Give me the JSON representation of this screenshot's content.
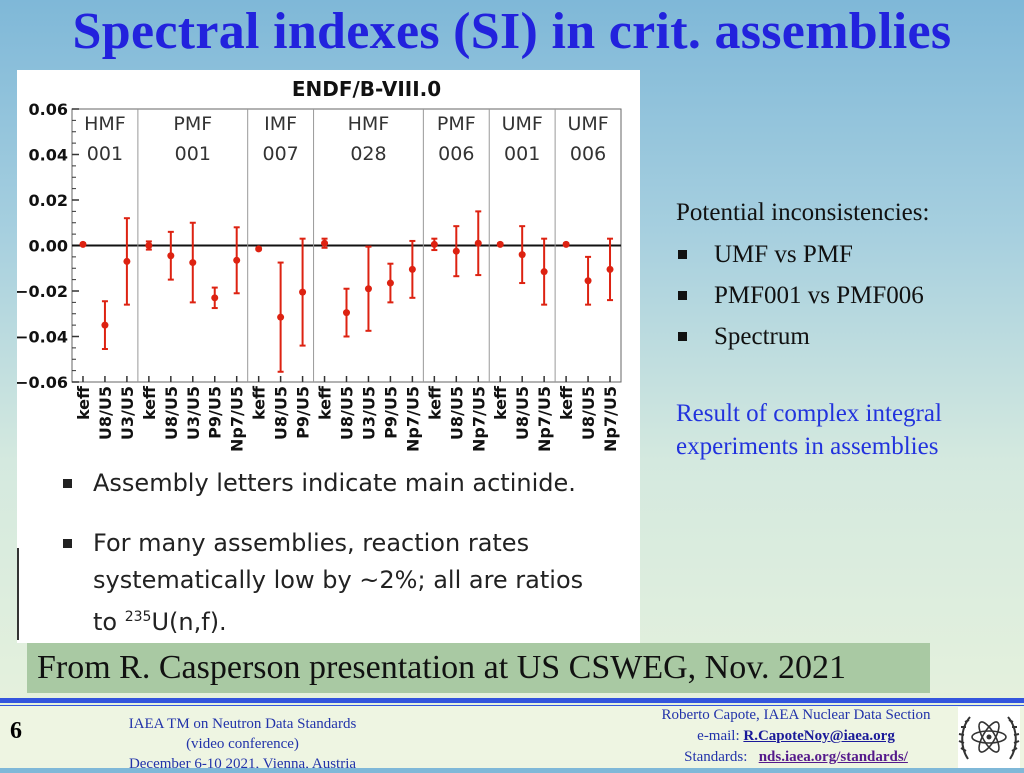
{
  "slide": {
    "title": "Spectral indexes (SI) in crit. assemblies",
    "page_number": "6"
  },
  "chart_data": {
    "type": "scatter",
    "subtype": "errorbar",
    "title": "ENDF/B-VIII.0",
    "ylim": [
      -0.06,
      0.06
    ],
    "yticks": [
      0.06,
      0.04,
      0.02,
      0.0,
      -0.02,
      -0.04,
      -0.06
    ],
    "ytick_labels": [
      "0.06",
      "0.04",
      "0.02",
      "0.00",
      "−0.02",
      "−0.04",
      "−0.06"
    ],
    "marker_color": "#dd2211",
    "groups": [
      {
        "name_line1": "HMF",
        "name_line2": "001",
        "points": [
          {
            "label": "keff",
            "value": 0.0005,
            "err": 0.0005
          },
          {
            "label": "U8/U5",
            "value": -0.035,
            "err": 0.0105
          },
          {
            "label": "U3/U5",
            "value": -0.007,
            "err": 0.019
          }
        ]
      },
      {
        "name_line1": "PMF",
        "name_line2": "001",
        "points": [
          {
            "label": "keff",
            "value": 0.0,
            "err": 0.0018
          },
          {
            "label": "U8/U5",
            "value": -0.0045,
            "err": 0.0105
          },
          {
            "label": "U3/U5",
            "value": -0.0075,
            "err": 0.0175
          },
          {
            "label": "P9/U5",
            "value": -0.023,
            "err": 0.0045
          },
          {
            "label": "Np7/U5",
            "value": -0.0065,
            "err": 0.0145
          }
        ]
      },
      {
        "name_line1": "IMF",
        "name_line2": "007",
        "points": [
          {
            "label": "keff",
            "value": -0.0015,
            "err": 0.0005
          },
          {
            "label": "U8/U5",
            "value": -0.0315,
            "err": 0.024
          },
          {
            "label": "P9/U5",
            "value": -0.0205,
            "err": 0.0235
          }
        ]
      },
      {
        "name_line1": "HMF",
        "name_line2": "028",
        "points": [
          {
            "label": "keff",
            "value": 0.001,
            "err": 0.002
          },
          {
            "label": "U8/U5",
            "value": -0.0295,
            "err": 0.0105
          },
          {
            "label": "U3/U5",
            "value": -0.019,
            "err": 0.0185
          },
          {
            "label": "P9/U5",
            "value": -0.0165,
            "err": 0.0085
          },
          {
            "label": "Np7/U5",
            "value": -0.0105,
            "err": 0.0125
          }
        ]
      },
      {
        "name_line1": "PMF",
        "name_line2": "006",
        "points": [
          {
            "label": "keff",
            "value": 0.0005,
            "err": 0.0025
          },
          {
            "label": "U8/U5",
            "value": -0.0025,
            "err": 0.011
          },
          {
            "label": "Np7/U5",
            "value": 0.001,
            "err": 0.014
          }
        ]
      },
      {
        "name_line1": "UMF",
        "name_line2": "001",
        "points": [
          {
            "label": "keff",
            "value": 0.0005,
            "err": 0.0005
          },
          {
            "label": "U8/U5",
            "value": -0.004,
            "err": 0.0125
          },
          {
            "label": "Np7/U5",
            "value": -0.0115,
            "err": 0.0145
          }
        ]
      },
      {
        "name_line1": "UMF",
        "name_line2": "006",
        "points": [
          {
            "label": "keff",
            "value": 0.0005,
            "err": 0.0005
          },
          {
            "label": "U8/U5",
            "value": -0.0155,
            "err": 0.0105
          },
          {
            "label": "Np7/U5",
            "value": -0.0105,
            "err": 0.0135
          }
        ]
      }
    ]
  },
  "figure_notes": {
    "note1": "Assembly letters indicate main actinide.",
    "note2_line1": "For many assemblies, reaction rates",
    "note2_line2": "systematically low by ~2%; all are ratios",
    "note2_prefix": "to ",
    "note2_sup": "235",
    "note2_suffix": "U(n,f)."
  },
  "side_panel": {
    "heading": "Potential inconsistencies:",
    "items": [
      "UMF vs PMF",
      "PMF001 vs PMF006",
      "Spectrum"
    ],
    "result_line1": "Result of complex integral",
    "result_line2": "experiments in assemblies",
    "result_color": "#2233dd"
  },
  "source_caption": "From R. Casperson presentation at US CSWEG, Nov. 2021",
  "footer": {
    "left_line1": "IAEA TM on Neutron Data Standards",
    "left_line2": "(video conference)",
    "left_line3": "December 6-10 2021, Vienna, Austria",
    "right_line1": "Roberto Capote, IAEA Nuclear Data Section",
    "right_email_prefix": "e-mail: ",
    "right_email": "R.CapoteNoy@iaea.org",
    "right_standards_prefix": "Standards:",
    "right_standards_url": "nds.iaea.org/standards/"
  },
  "colors": {
    "title": "#2222dd",
    "footer_blue": "#3355dd",
    "caption_bg": "#a9c9a3"
  }
}
